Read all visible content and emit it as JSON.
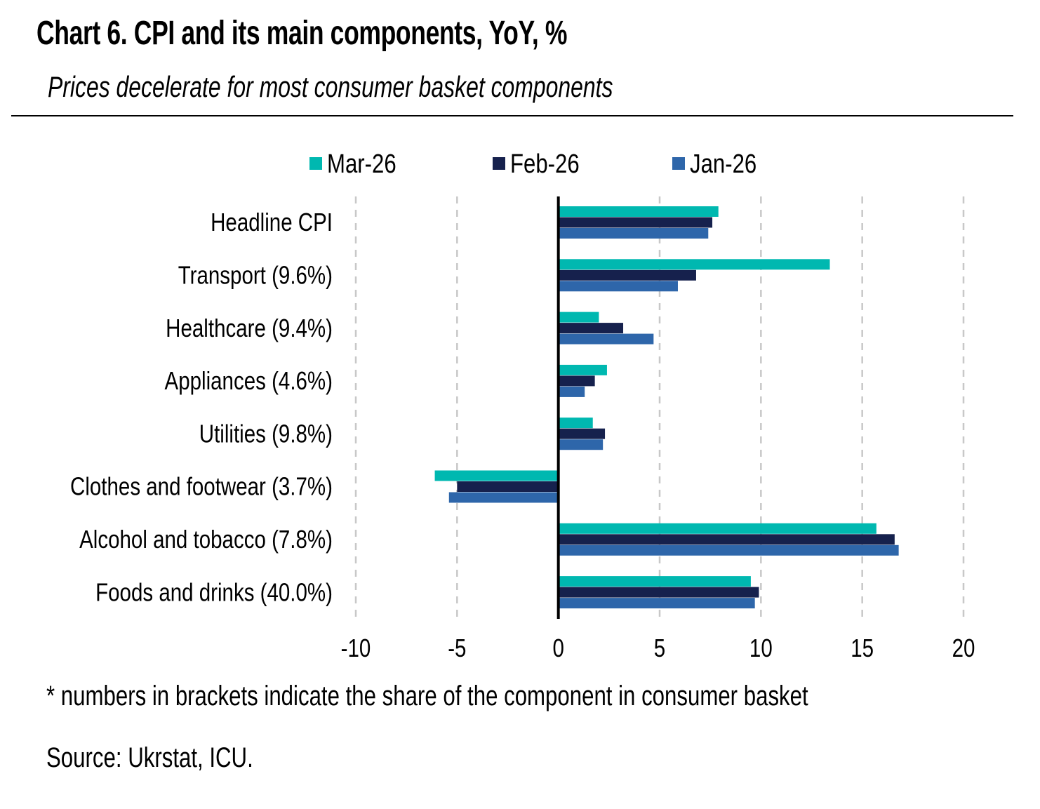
{
  "header": {
    "title": "Chart 6. CPI and its main components, YoY, %",
    "subtitle": "Prices decelerate for most consumer basket components"
  },
  "footer": {
    "footnote": "* numbers in brackets indicate the share of the component in consumer basket",
    "source": "Source: Ukrstat, ICU."
  },
  "chart_data": {
    "type": "bar",
    "orientation": "horizontal",
    "title": "Chart 6. CPI and its main components, YoY, %",
    "subtitle": "Prices decelerate for most consumer basket components",
    "xlabel": "",
    "ylabel": "",
    "xlim": [
      -10,
      20
    ],
    "xticks": [
      -10,
      -5,
      0,
      5,
      10,
      15,
      20
    ],
    "xtick_labels": [
      "-10",
      "-5",
      "0",
      "5",
      "10",
      "15",
      "20"
    ],
    "grid": "vertical dashed",
    "legend_position": "top",
    "categories": [
      "Headline CPI",
      "Transport (9.6%)",
      "Healthcare (9.4%)",
      "Appliances (4.6%)",
      "Utilities (9.8%)",
      "Clothes and footwear (3.7%)",
      "Alcohol and tobacco (7.8%)",
      "Foods and drinks (40.0%)"
    ],
    "series": [
      {
        "name": "Mar-26",
        "color": "#00B8B0",
        "values": [
          7.9,
          13.4,
          2.0,
          2.4,
          1.7,
          -6.1,
          15.7,
          9.5
        ]
      },
      {
        "name": "Feb-26",
        "color": "#16214D",
        "values": [
          7.6,
          6.8,
          3.2,
          1.8,
          2.3,
          -5.0,
          16.6,
          9.9
        ]
      },
      {
        "name": "Jan-26",
        "color": "#2E66AA",
        "values": [
          7.4,
          5.9,
          4.7,
          1.3,
          2.2,
          -5.4,
          16.8,
          9.7
        ]
      }
    ]
  }
}
